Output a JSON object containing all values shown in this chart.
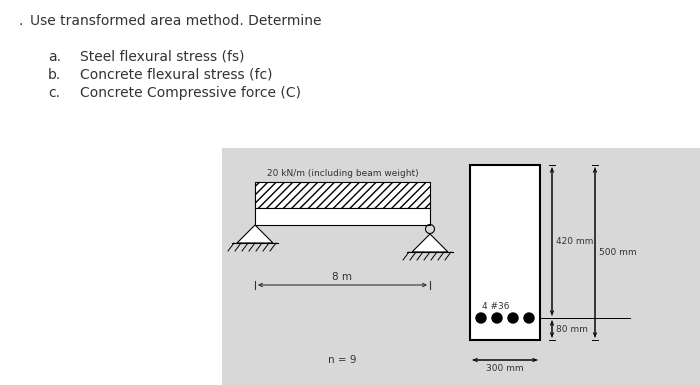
{
  "bg_color": "#d8d8d8",
  "white": "#ffffff",
  "black": "#000000",
  "dark_text": "#333333",
  "title_text": "Use transformed area method. Determine",
  "bullet": ".",
  "items": [
    "Steel flexural stress (fs)",
    "Concrete flexural stress (fc)",
    "Concrete Compressive force (C)"
  ],
  "item_labels": [
    "a.",
    "b.",
    "c."
  ],
  "load_label": "20 kN/m (including beam weight)",
  "span_label": "8 m",
  "n_label": "n = 9",
  "bar_label": "4 #36",
  "dim1_label": "420 mm",
  "dim2_label": "500 mm",
  "dim3_label": "80 mm",
  "dim4_label": "300 mm",
  "figw": 7.0,
  "figh": 3.85,
  "dpi": 100
}
